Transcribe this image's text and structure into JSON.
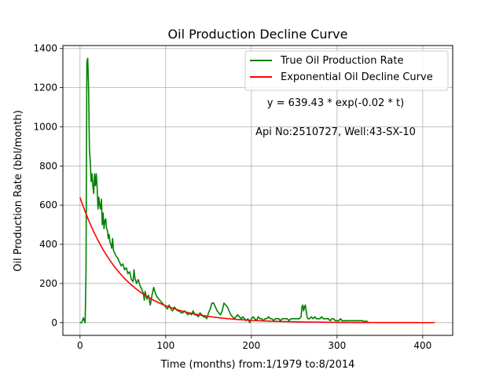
{
  "chart_data": {
    "type": "line",
    "title": "Oil Production Decline Curve",
    "xlabel": "Time (months) from:1/1979 to:8/2014",
    "ylabel": "Oil Production Rate (bbl/month)",
    "xlim": [
      -20,
      435
    ],
    "ylim": [
      -65,
      1415
    ],
    "x_ticks": [
      0,
      100,
      200,
      300,
      400
    ],
    "y_ticks": [
      0,
      200,
      400,
      600,
      800,
      1000,
      1200,
      1400
    ],
    "grid": true,
    "legend": {
      "placement": "top-right"
    },
    "annotations": [
      "y = 639.43 * exp(-0.02 * t)",
      "Api No:2510727, Well:43-SX-10"
    ],
    "colors": {
      "true_series": "#008000",
      "fit_series": "#ff0000",
      "grid": "#b0b0b0"
    },
    "series": [
      {
        "name": "True Oil Production Rate",
        "color": "#008000",
        "points": [
          [
            0,
            0
          ],
          [
            2,
            0
          ],
          [
            4,
            25
          ],
          [
            5,
            10
          ],
          [
            6,
            0
          ],
          [
            7,
            250
          ],
          [
            8,
            1330
          ],
          [
            9,
            1350
          ],
          [
            10,
            1200
          ],
          [
            11,
            880
          ],
          [
            12,
            820
          ],
          [
            13,
            720
          ],
          [
            14,
            760
          ],
          [
            15,
            700
          ],
          [
            16,
            660
          ],
          [
            17,
            760
          ],
          [
            18,
            700
          ],
          [
            19,
            760
          ],
          [
            20,
            690
          ],
          [
            21,
            580
          ],
          [
            22,
            640
          ],
          [
            23,
            600
          ],
          [
            24,
            580
          ],
          [
            25,
            630
          ],
          [
            26,
            500
          ],
          [
            27,
            560
          ],
          [
            28,
            480
          ],
          [
            29,
            520
          ],
          [
            30,
            530
          ],
          [
            31,
            480
          ],
          [
            32,
            470
          ],
          [
            33,
            430
          ],
          [
            34,
            450
          ],
          [
            35,
            410
          ],
          [
            36,
            400
          ],
          [
            37,
            380
          ],
          [
            38,
            430
          ],
          [
            39,
            370
          ],
          [
            40,
            360
          ],
          [
            42,
            340
          ],
          [
            44,
            330
          ],
          [
            46,
            310
          ],
          [
            48,
            290
          ],
          [
            50,
            300
          ],
          [
            52,
            270
          ],
          [
            54,
            280
          ],
          [
            56,
            250
          ],
          [
            58,
            260
          ],
          [
            60,
            220
          ],
          [
            62,
            210
          ],
          [
            63,
            270
          ],
          [
            64,
            230
          ],
          [
            66,
            200
          ],
          [
            68,
            220
          ],
          [
            70,
            190
          ],
          [
            72,
            170
          ],
          [
            74,
            150
          ],
          [
            75,
            115
          ],
          [
            76,
            160
          ],
          [
            78,
            120
          ],
          [
            80,
            140
          ],
          [
            82,
            90
          ],
          [
            84,
            140
          ],
          [
            86,
            180
          ],
          [
            88,
            150
          ],
          [
            90,
            130
          ],
          [
            92,
            120
          ],
          [
            94,
            110
          ],
          [
            96,
            100
          ],
          [
            98,
            90
          ],
          [
            100,
            80
          ],
          [
            102,
            70
          ],
          [
            104,
            90
          ],
          [
            106,
            70
          ],
          [
            108,
            60
          ],
          [
            110,
            80
          ],
          [
            112,
            70
          ],
          [
            114,
            60
          ],
          [
            116,
            60
          ],
          [
            118,
            50
          ],
          [
            120,
            50
          ],
          [
            122,
            60
          ],
          [
            124,
            50
          ],
          [
            126,
            40
          ],
          [
            128,
            50
          ],
          [
            130,
            40
          ],
          [
            132,
            60
          ],
          [
            134,
            40
          ],
          [
            136,
            40
          ],
          [
            138,
            30
          ],
          [
            140,
            50
          ],
          [
            142,
            40
          ],
          [
            144,
            30
          ],
          [
            146,
            30
          ],
          [
            148,
            20
          ],
          [
            150,
            50
          ],
          [
            152,
            70
          ],
          [
            154,
            100
          ],
          [
            156,
            100
          ],
          [
            158,
            80
          ],
          [
            160,
            60
          ],
          [
            162,
            50
          ],
          [
            164,
            40
          ],
          [
            166,
            60
          ],
          [
            168,
            100
          ],
          [
            170,
            90
          ],
          [
            172,
            80
          ],
          [
            174,
            60
          ],
          [
            176,
            40
          ],
          [
            178,
            30
          ],
          [
            180,
            20
          ],
          [
            182,
            30
          ],
          [
            184,
            40
          ],
          [
            186,
            30
          ],
          [
            188,
            20
          ],
          [
            190,
            30
          ],
          [
            192,
            20
          ],
          [
            194,
            10
          ],
          [
            196,
            20
          ],
          [
            198,
            0
          ],
          [
            200,
            20
          ],
          [
            202,
            30
          ],
          [
            204,
            20
          ],
          [
            206,
            10
          ],
          [
            208,
            30
          ],
          [
            210,
            20
          ],
          [
            212,
            20
          ],
          [
            214,
            10
          ],
          [
            216,
            20
          ],
          [
            218,
            20
          ],
          [
            220,
            30
          ],
          [
            222,
            20
          ],
          [
            224,
            20
          ],
          [
            226,
            10
          ],
          [
            228,
            20
          ],
          [
            230,
            20
          ],
          [
            232,
            20
          ],
          [
            234,
            10
          ],
          [
            236,
            20
          ],
          [
            238,
            20
          ],
          [
            240,
            20
          ],
          [
            242,
            20
          ],
          [
            244,
            10
          ],
          [
            246,
            20
          ],
          [
            248,
            20
          ],
          [
            250,
            20
          ],
          [
            252,
            20
          ],
          [
            254,
            20
          ],
          [
            256,
            20
          ],
          [
            258,
            30
          ],
          [
            259,
            80
          ],
          [
            260,
            90
          ],
          [
            261,
            60
          ],
          [
            262,
            80
          ],
          [
            263,
            90
          ],
          [
            264,
            60
          ],
          [
            265,
            30
          ],
          [
            266,
            20
          ],
          [
            268,
            20
          ],
          [
            270,
            30
          ],
          [
            272,
            20
          ],
          [
            274,
            30
          ],
          [
            276,
            20
          ],
          [
            278,
            20
          ],
          [
            280,
            20
          ],
          [
            282,
            30
          ],
          [
            284,
            20
          ],
          [
            286,
            20
          ],
          [
            288,
            20
          ],
          [
            290,
            20
          ],
          [
            292,
            10
          ],
          [
            294,
            20
          ],
          [
            296,
            20
          ],
          [
            298,
            10
          ],
          [
            300,
            10
          ],
          [
            302,
            10
          ],
          [
            304,
            20
          ],
          [
            306,
            10
          ],
          [
            308,
            10
          ],
          [
            310,
            10
          ],
          [
            312,
            10
          ],
          [
            314,
            10
          ],
          [
            316,
            10
          ],
          [
            318,
            10
          ],
          [
            320,
            10
          ],
          [
            322,
            10
          ],
          [
            324,
            10
          ],
          [
            326,
            10
          ],
          [
            328,
            10
          ],
          [
            330,
            10
          ],
          [
            332,
            5
          ],
          [
            334,
            8
          ],
          [
            336,
            5
          ]
        ]
      },
      {
        "name": "Exponential Oil Decline Curve",
        "color": "#ff0000",
        "function": {
          "a": 639.43,
          "b": 0.02
        },
        "x_range": [
          0,
          414
        ]
      }
    ]
  }
}
